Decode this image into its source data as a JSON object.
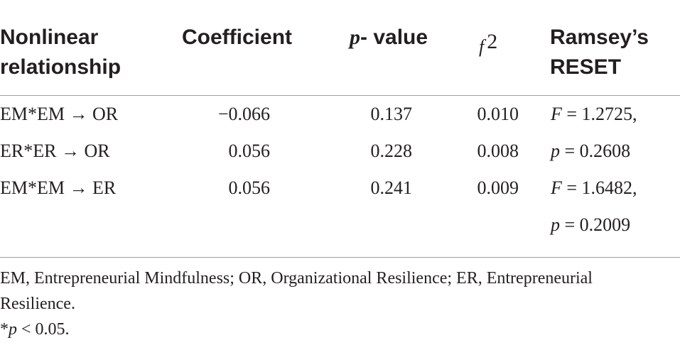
{
  "table": {
    "headers": {
      "col1_line1": "Nonlinear",
      "col1_line2": "relationship",
      "col2": "Coefficient",
      "col3_italic": "p",
      "col3_rest": "- value",
      "col4_base": "f",
      "col4_sup": "2",
      "col5_line1": "Ramsey’s",
      "col5_line2": "RESET"
    },
    "rows": [
      {
        "relationship": "EM*EM → OR",
        "coefficient": "−0.066",
        "p_value": "0.137",
        "f2": "0.010",
        "reset_var": "F",
        "reset_val": " = 1.2725,"
      },
      {
        "relationship": "ER*ER → OR",
        "coefficient": "0.056",
        "p_value": "0.228",
        "f2": "0.008",
        "reset_var": "p",
        "reset_val": " = 0.2608"
      },
      {
        "relationship": "EM*EM → ER",
        "coefficient": "0.056",
        "p_value": "0.241",
        "f2": "0.009",
        "reset_var": "F",
        "reset_val": " = 1.6482,"
      }
    ],
    "extra_reset": {
      "reset_var": "p",
      "reset_val": " = 0.2009"
    }
  },
  "footnotes": {
    "abbrev_line1": "EM, Entrepreneurial Mindfulness; OR, Organizational Resilience; ER, Entrepreneurial",
    "abbrev_line2": "Resilience.",
    "sig_star": "*",
    "sig_var": "p",
    "sig_rest": " < 0.05."
  }
}
